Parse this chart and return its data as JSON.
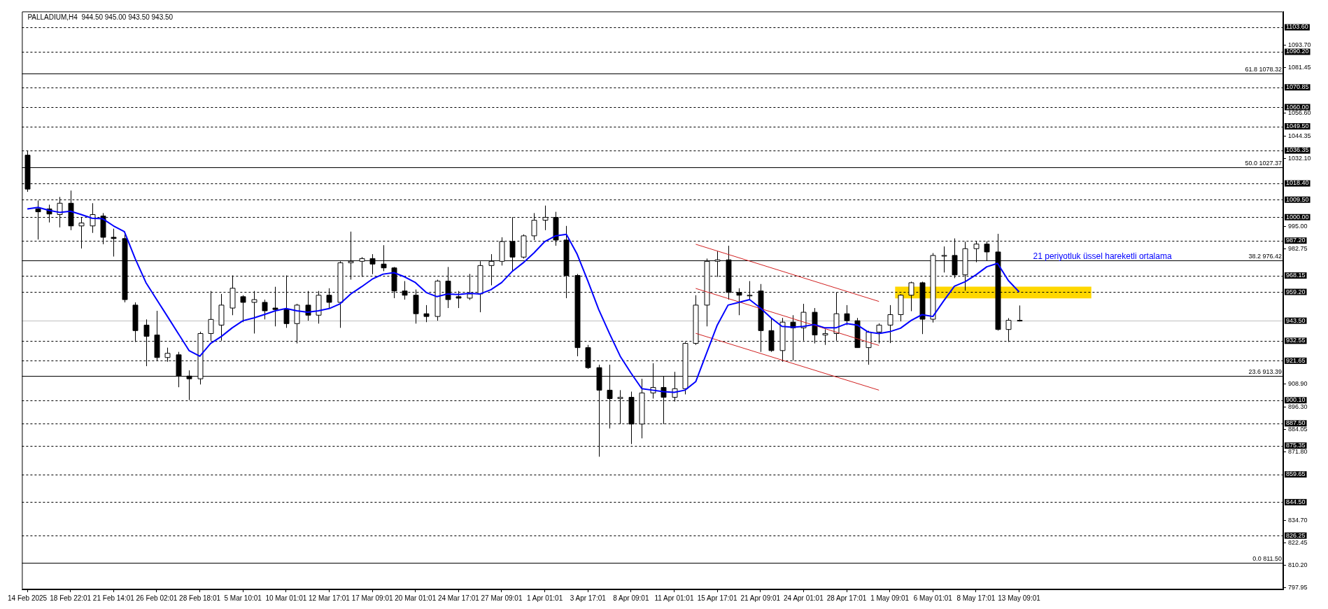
{
  "chart_data": {
    "type": "candlestick",
    "title": "PALLADIUM,H4  944.50 945.00 943.50 943.50",
    "categories": [
      "14 Feb 2025",
      null,
      null,
      null,
      "18 Feb 22:01",
      null,
      null,
      null,
      "21 Feb 14:01",
      null,
      null,
      null,
      "26 Feb 02:01",
      null,
      null,
      null,
      "28 Feb 18:01",
      null,
      null,
      null,
      "5 Mar 10:01",
      null,
      null,
      null,
      "10 Mar 01:01",
      null,
      null,
      null,
      "12 Mar 17:01",
      null,
      null,
      null,
      "17 Mar 09:01",
      null,
      null,
      null,
      "20 Mar 01:01",
      null,
      null,
      null,
      "24 Mar 17:01",
      null,
      null,
      null,
      "27 Mar 09:01",
      null,
      null,
      null,
      "1 Apr 01:01",
      null,
      null,
      null,
      "3 Apr 17:01",
      null,
      null,
      null,
      "8 Apr 09:01",
      null,
      null,
      null,
      "11 Apr 01:01",
      null,
      null,
      null,
      "15 Apr 17:01",
      null,
      null,
      null,
      "21 Apr 09:01",
      null,
      null,
      null,
      "24 Apr 01:01",
      null,
      null,
      null,
      "28 Apr 17:01",
      null,
      null,
      null,
      "1 May 09:01",
      null,
      null,
      null,
      "6 May 01:01",
      null,
      null,
      null,
      "8 May 17:01",
      null,
      null,
      null,
      "13 May 09:01"
    ],
    "ohlc": [
      [
        1033.8,
        1036.2,
        1013.8,
        1015.3
      ],
      [
        1004.5,
        1009.1,
        987.8,
        1002.9
      ],
      [
        1004.5,
        1006.8,
        997.1,
        1001.7
      ],
      [
        1001.4,
        1011.0,
        994.4,
        1007.6
      ],
      [
        1007.6,
        1014.5,
        992.9,
        995.2
      ],
      [
        995.2,
        1000.1,
        982.9,
        996.8
      ],
      [
        995.2,
        1007.6,
        991.4,
        1001.4
      ],
      [
        1000.6,
        1002.2,
        985.2,
        989.0
      ],
      [
        989.0,
        993.7,
        978.5,
        988.3
      ],
      [
        988.3,
        990.6,
        953.5,
        955.0
      ],
      [
        952.0,
        953.5,
        931.9,
        938.1
      ],
      [
        941.1,
        944.2,
        918.7,
        935.0
      ],
      [
        935.7,
        948.9,
        921.8,
        923.4
      ],
      [
        923.4,
        928.8,
        921.1,
        925.7
      ],
      [
        924.9,
        926.5,
        907.2,
        913.3
      ],
      [
        913.3,
        916.4,
        900.2,
        911.8
      ],
      [
        911.8,
        937.5,
        908.7,
        936.5
      ],
      [
        936.5,
        959.7,
        932.6,
        944.2
      ],
      [
        941.1,
        958.1,
        932.6,
        952.0
      ],
      [
        950.4,
        968.2,
        946.5,
        961.2
      ],
      [
        956.6,
        957.4,
        942.7,
        953.5
      ],
      [
        953.5,
        959.7,
        936.5,
        955.0
      ],
      [
        953.5,
        955.0,
        944.2,
        948.9
      ],
      [
        950.4,
        962.0,
        940.4,
        949.6
      ],
      [
        949.6,
        968.2,
        939.6,
        941.9
      ],
      [
        941.9,
        952.7,
        931.1,
        952.0
      ],
      [
        952.0,
        959.7,
        943.5,
        946.5
      ],
      [
        946.5,
        959.7,
        941.9,
        957.4
      ],
      [
        957.4,
        961.2,
        950.4,
        953.5
      ],
      [
        953.5,
        975.9,
        939.6,
        975.1
      ],
      [
        975.1,
        992.1,
        965.9,
        975.9
      ],
      [
        975.9,
        978.2,
        967.4,
        977.4
      ],
      [
        977.4,
        979.8,
        968.9,
        974.4
      ],
      [
        974.4,
        984.7,
        970.5,
        972.3
      ],
      [
        972.3,
        972.8,
        955.8,
        959.7
      ],
      [
        959.7,
        965.1,
        955.0,
        957.4
      ],
      [
        957.4,
        960.5,
        941.9,
        947.3
      ],
      [
        947.3,
        952.0,
        942.7,
        945.8
      ],
      [
        945.8,
        965.9,
        943.5,
        965.1
      ],
      [
        965.1,
        972.8,
        950.4,
        955.0
      ],
      [
        956.6,
        959.7,
        950.4,
        955.8
      ],
      [
        955.8,
        969.0,
        954.8,
        958.1
      ],
      [
        958.1,
        975.9,
        948.1,
        973.6
      ],
      [
        973.6,
        979.8,
        962.8,
        975.9
      ],
      [
        975.9,
        989.0,
        973.6,
        986.7
      ],
      [
        986.7,
        1000.0,
        970.5,
        978.2
      ],
      [
        978.2,
        990.6,
        977.4,
        989.8
      ],
      [
        989.8,
        1002.2,
        987.5,
        998.3
      ],
      [
        998.3,
        1006.3,
        992.9,
        999.9
      ],
      [
        999.9,
        1002.9,
        984.4,
        987.5
      ],
      [
        987.5,
        995.2,
        955.8,
        968.2
      ],
      [
        968.2,
        969.0,
        924.1,
        928.8
      ],
      [
        928.8,
        930.3,
        917.2,
        917.9
      ],
      [
        917.9,
        919.5,
        869.3,
        905.6
      ],
      [
        905.6,
        919.5,
        884.7,
        901.0
      ],
      [
        901.0,
        905.6,
        887.1,
        901.7
      ],
      [
        901.7,
        904.8,
        876.2,
        887.1
      ],
      [
        887.1,
        911.8,
        879.3,
        904.1
      ],
      [
        904.1,
        920.3,
        901.0,
        907.1
      ],
      [
        907.1,
        913.3,
        887.1,
        901.7
      ],
      [
        901.7,
        915.6,
        899.4,
        906.4
      ],
      [
        906.4,
        931.9,
        903.3,
        931.1
      ],
      [
        931.1,
        957.4,
        930.3,
        952.0
      ],
      [
        952.0,
        977.4,
        940.4,
        975.9
      ],
      [
        975.9,
        981.3,
        967.4,
        976.7
      ],
      [
        976.7,
        984.4,
        955.0,
        958.9
      ],
      [
        958.9,
        961.2,
        946.5,
        957.4
      ],
      [
        957.4,
        965.1,
        955.0,
        957.4
      ],
      [
        959.7,
        963.5,
        926.5,
        938.1
      ],
      [
        938.1,
        945.0,
        926.5,
        927.2
      ],
      [
        927.2,
        945.0,
        921.1,
        942.7
      ],
      [
        942.7,
        946.5,
        921.8,
        939.6
      ],
      [
        939.6,
        952.7,
        932.6,
        948.1
      ],
      [
        948.1,
        950.4,
        931.1,
        935.7
      ],
      [
        935.7,
        938.8,
        930.3,
        936.5
      ],
      [
        936.5,
        958.9,
        932.6,
        947.3
      ],
      [
        947.3,
        952.0,
        941.1,
        943.5
      ],
      [
        943.5,
        945.0,
        928.8,
        928.8
      ],
      [
        928.8,
        938.0,
        919.5,
        937.3
      ],
      [
        937.3,
        942.0,
        931.1,
        941.1
      ],
      [
        941.1,
        952.0,
        931.3,
        946.8
      ],
      [
        946.8,
        958.0,
        943.1,
        957.4
      ],
      [
        957.4,
        964.8,
        948.7,
        964.2
      ],
      [
        964.2,
        964.8,
        936.2,
        944.3
      ],
      [
        944.3,
        980.4,
        942.5,
        979.1
      ],
      [
        979.1,
        984.0,
        969.8,
        979.1
      ],
      [
        979.1,
        988.4,
        966.7,
        968.5
      ],
      [
        968.5,
        986.6,
        959.9,
        982.8
      ],
      [
        982.8,
        986.8,
        975.4,
        985.3
      ],
      [
        985.3,
        986.8,
        976.0,
        981.0
      ],
      [
        981.0,
        990.9,
        938.1,
        938.7
      ],
      [
        938.7,
        944.9,
        931.9,
        943.7
      ],
      [
        943.7,
        951.8,
        943.1,
        943.5
      ]
    ],
    "series": [
      {
        "type": "line",
        "name": "21 periyotluk üssel hareketli ortalama",
        "color": "#0000ff",
        "values": [
          1004.5,
          1005.3,
          1003.7,
          1002.6,
          1003.2,
          1001.4,
          999.4,
          999.1,
          995.2,
          992.1,
          977.4,
          964.3,
          955.0,
          945.8,
          936.5,
          927.2,
          924.1,
          931.1,
          934.9,
          939.6,
          943.5,
          945.0,
          946.9,
          948.9,
          950.1,
          948.9,
          948.1,
          948.9,
          950.1,
          952.7,
          958.1,
          962.0,
          966.2,
          968.9,
          969.7,
          967.4,
          964.3,
          958.9,
          956.6,
          958.1,
          957.8,
          958.4,
          958.1,
          960.4,
          964.3,
          970.5,
          975.1,
          980.5,
          986.7,
          989.8,
          990.6,
          979.8,
          965.1,
          949.6,
          936.5,
          924.1,
          914.9,
          906.4,
          905.6,
          904.8,
          904.4,
          905.6,
          910.2,
          925.7,
          941.1,
          952.0,
          953.5,
          955.0,
          950.4,
          945.0,
          940.4,
          939.9,
          940.4,
          941.4,
          939.6,
          939.6,
          941.9,
          941.1,
          937.3,
          936.5,
          937.5,
          939.4,
          943.7,
          946.8,
          945.8,
          954.3,
          962.3,
          964.8,
          968.5,
          972.9,
          974.8,
          965.4,
          959.2
        ]
      },
      {
        "type": "line",
        "color": "#d02020",
        "values": [
          null,
          null,
          null,
          null,
          null,
          null,
          null,
          null,
          null,
          null,
          null,
          null,
          null,
          null,
          null,
          null,
          null,
          null,
          null,
          null,
          null,
          null,
          null,
          null,
          null,
          null,
          null,
          null,
          null,
          null,
          null,
          null,
          null,
          null,
          null,
          null,
          null,
          null,
          null,
          null,
          null,
          null,
          null,
          null,
          null,
          null,
          null,
          null,
          null,
          null,
          null,
          null,
          null,
          null,
          null,
          null,
          null,
          null,
          null,
          null,
          null,
          null,
          985.2,
          null,
          null,
          null,
          null,
          null,
          null,
          null,
          null,
          null,
          null,
          null,
          null,
          null,
          null,
          null,
          null,
          954.0,
          null,
          null,
          null,
          null,
          null,
          null,
          null,
          null,
          null,
          null,
          null,
          null,
          null
        ]
      },
      {
        "type": "line",
        "color": "#d02020",
        "values": [
          null,
          null,
          null,
          null,
          null,
          null,
          null,
          null,
          null,
          null,
          null,
          null,
          null,
          null,
          null,
          null,
          null,
          null,
          null,
          null,
          null,
          null,
          null,
          null,
          null,
          null,
          null,
          null,
          null,
          null,
          null,
          null,
          null,
          null,
          null,
          null,
          null,
          null,
          null,
          null,
          null,
          null,
          null,
          null,
          null,
          null,
          null,
          null,
          null,
          null,
          null,
          null,
          null,
          null,
          null,
          null,
          null,
          null,
          null,
          null,
          null,
          null,
          961.1,
          null,
          null,
          null,
          null,
          null,
          null,
          null,
          null,
          null,
          null,
          null,
          null,
          null,
          null,
          null,
          null,
          930.0,
          null,
          null,
          null,
          null,
          null,
          null,
          null,
          null,
          null,
          null,
          null,
          null,
          null
        ]
      },
      {
        "type": "line",
        "color": "#d02020",
        "values": [
          null,
          null,
          null,
          null,
          null,
          null,
          null,
          null,
          null,
          null,
          null,
          null,
          null,
          null,
          null,
          null,
          null,
          null,
          null,
          null,
          null,
          null,
          null,
          null,
          null,
          null,
          null,
          null,
          null,
          null,
          null,
          null,
          null,
          null,
          null,
          null,
          null,
          null,
          null,
          null,
          null,
          null,
          null,
          null,
          null,
          null,
          null,
          null,
          null,
          null,
          null,
          null,
          null,
          null,
          null,
          null,
          null,
          null,
          null,
          null,
          null,
          null,
          936.6,
          null,
          null,
          null,
          null,
          null,
          null,
          null,
          null,
          null,
          null,
          null,
          null,
          null,
          null,
          null,
          null,
          905.6,
          null,
          null,
          null,
          null,
          null,
          null,
          null,
          null,
          null,
          null,
          null,
          null,
          null
        ]
      }
    ],
    "ylim": [
      796.9,
      1112.2
    ],
    "yticks": [
      {
        "value": 1093.7,
        "label": "1093.70"
      },
      {
        "value": 1081.45,
        "label": "1081.45"
      },
      {
        "value": 1056.6,
        "label": "1056.60"
      },
      {
        "value": 1044.35,
        "label": "1044.35"
      },
      {
        "value": 1032.1,
        "label": "1032.10"
      },
      {
        "value": 995,
        "label": "995.00"
      },
      {
        "value": 982.75,
        "label": "982.75"
      },
      {
        "value": 908.9,
        "label": "908.90"
      },
      {
        "value": 896.3,
        "label": "896.30"
      },
      {
        "value": 884.05,
        "label": "884.05"
      },
      {
        "value": 871.8,
        "label": "871.80"
      },
      {
        "value": 834.7,
        "label": "834.70"
      },
      {
        "value": 822.45,
        "label": "822.45"
      },
      {
        "value": 810.2,
        "label": "810.20"
      },
      {
        "value": 797.95,
        "label": "797.95"
      }
    ],
    "ref_lines": [
      {
        "axis": "y",
        "value": 1103.6,
        "label": "1103.60",
        "color": "#000000",
        "line_style": "dashed"
      },
      {
        "axis": "y",
        "value": 1090.2,
        "label": "1090.20",
        "color": "#000000",
        "line_style": "dashed"
      },
      {
        "axis": "y",
        "value": 1070.85,
        "label": "1070.85",
        "color": "#000000",
        "line_style": "dashed"
      },
      {
        "axis": "y",
        "value": 1060,
        "label": "1060.00",
        "color": "#000000",
        "line_style": "dashed"
      },
      {
        "axis": "y",
        "value": 1049.5,
        "label": "1049.50",
        "color": "#000000",
        "line_style": "dashed"
      },
      {
        "axis": "y",
        "value": 1036.35,
        "label": "1036.35",
        "color": "#000000",
        "line_style": "dashed"
      },
      {
        "axis": "y",
        "value": 1018.4,
        "label": "1018.40",
        "color": "#000000",
        "line_style": "dashed"
      },
      {
        "axis": "y",
        "value": 1009.5,
        "label": "1009.50",
        "color": "#000000",
        "line_style": "dashed"
      },
      {
        "axis": "y",
        "value": 1000,
        "label": "1000.00",
        "color": "#000000",
        "line_style": "dashed"
      },
      {
        "axis": "y",
        "value": 987.2,
        "label": "987.20",
        "color": "#000000",
        "line_style": "dashed"
      },
      {
        "axis": "y",
        "value": 968.15,
        "label": "968.15",
        "color": "#000000",
        "line_style": "dashed"
      },
      {
        "axis": "y",
        "value": 959.2,
        "label": "959.20",
        "color": "#000000",
        "line_style": "dashed"
      },
      {
        "axis": "y",
        "value": 932.55,
        "label": "932.55",
        "color": "#000000",
        "line_style": "dashed"
      },
      {
        "axis": "y",
        "value": 921.65,
        "label": "921.65",
        "color": "#000000",
        "line_style": "dashed"
      },
      {
        "axis": "y",
        "value": 900.1,
        "label": "900.10",
        "color": "#000000",
        "line_style": "dashed"
      },
      {
        "axis": "y",
        "value": 887.5,
        "label": "887.50",
        "color": "#000000",
        "line_style": "dashed"
      },
      {
        "axis": "y",
        "value": 875.35,
        "label": "875.35",
        "color": "#000000",
        "line_style": "dashed"
      },
      {
        "axis": "y",
        "value": 859.65,
        "label": "859.65",
        "color": "#000000",
        "line_style": "dashed"
      },
      {
        "axis": "y",
        "value": 844.5,
        "label": "844.50",
        "color": "#000000",
        "line_style": "dashed"
      },
      {
        "axis": "y",
        "value": 826.25,
        "label": "826.25",
        "color": "#000000",
        "line_style": "dashed"
      },
      {
        "axis": "y",
        "value": 943.5,
        "label": "943.50",
        "color": "#c0c0c0",
        "line_style": "solid"
      },
      {
        "axis": "y",
        "value": 1078.32,
        "label": "61.8 1078.32",
        "line_style": "solid"
      },
      {
        "axis": "y",
        "value": 1027.37,
        "label": "50.0 1027.37",
        "line_style": "solid"
      },
      {
        "axis": "y",
        "value": 976.42,
        "label": "38.2 976.42",
        "line_style": "solid"
      },
      {
        "axis": "y",
        "value": 913.39,
        "label": "23.6 913.39",
        "line_style": "solid"
      },
      {
        "axis": "y",
        "value": 811.5,
        "label": "0.0 811.50",
        "line_style": "solid"
      }
    ],
    "bands": [
      {
        "axis": "y",
        "from": 955.7,
        "to": 962.1,
        "color": "#ffd700"
      }
    ],
    "legend": false,
    "grid": false
  }
}
